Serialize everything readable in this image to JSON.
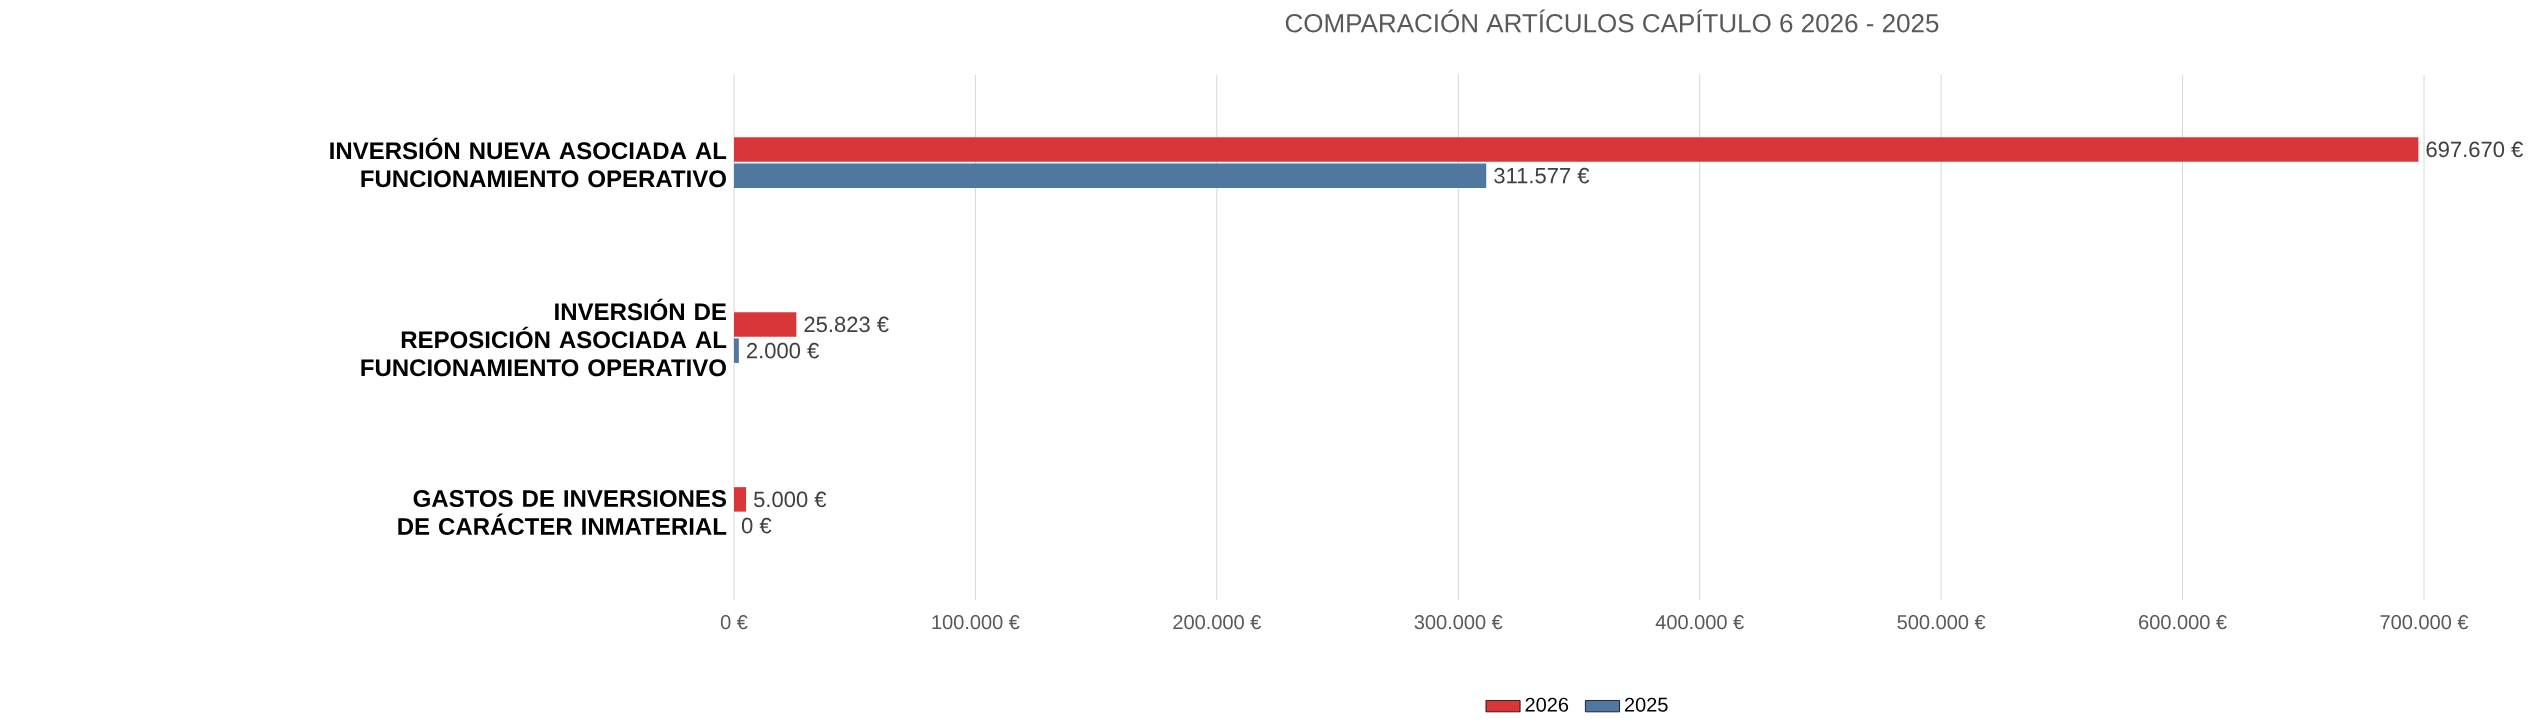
{
  "chart_data": {
    "type": "bar",
    "orientation": "horizontal",
    "title": "COMPARACIÓN ARTÍCULOS CAPÍTULO 6  2026 - 2025",
    "categories": [
      "INVERSIÓN NUEVA ASOCIADA AL FUNCIONAMIENTO OPERATIVO",
      "INVERSIÓN DE REPOSICIÓN ASOCIADA AL FUNCIONAMIENTO OPERATIVO",
      "GASTOS DE INVERSIONES DE CARÁCTER INMATERIAL"
    ],
    "series": [
      {
        "name": "2026",
        "color": "#d9363a",
        "values": [
          697670,
          25823,
          5000
        ],
        "value_labels": [
          "697.670 €",
          "25.823 €",
          "5.000 €"
        ]
      },
      {
        "name": "2025",
        "color": "#4f77a0",
        "values": [
          311577,
          2000,
          0
        ],
        "value_labels": [
          "311.577 €",
          "2.000 €",
          "0 €"
        ]
      }
    ],
    "xlim": [
      0,
      700000
    ],
    "xticks": [
      {
        "value": 0,
        "label": "0 €"
      },
      {
        "value": 100000,
        "label": "100.000 €"
      },
      {
        "value": 200000,
        "label": "200.000 €"
      },
      {
        "value": 300000,
        "label": "300.000 €"
      },
      {
        "value": 400000,
        "label": "400.000 €"
      },
      {
        "value": 500000,
        "label": "500.000 €"
      },
      {
        "value": 600000,
        "label": "600.000 €"
      },
      {
        "value": 700000,
        "label": "700.000 €"
      }
    ],
    "grid": "x",
    "legend": "bottom"
  }
}
